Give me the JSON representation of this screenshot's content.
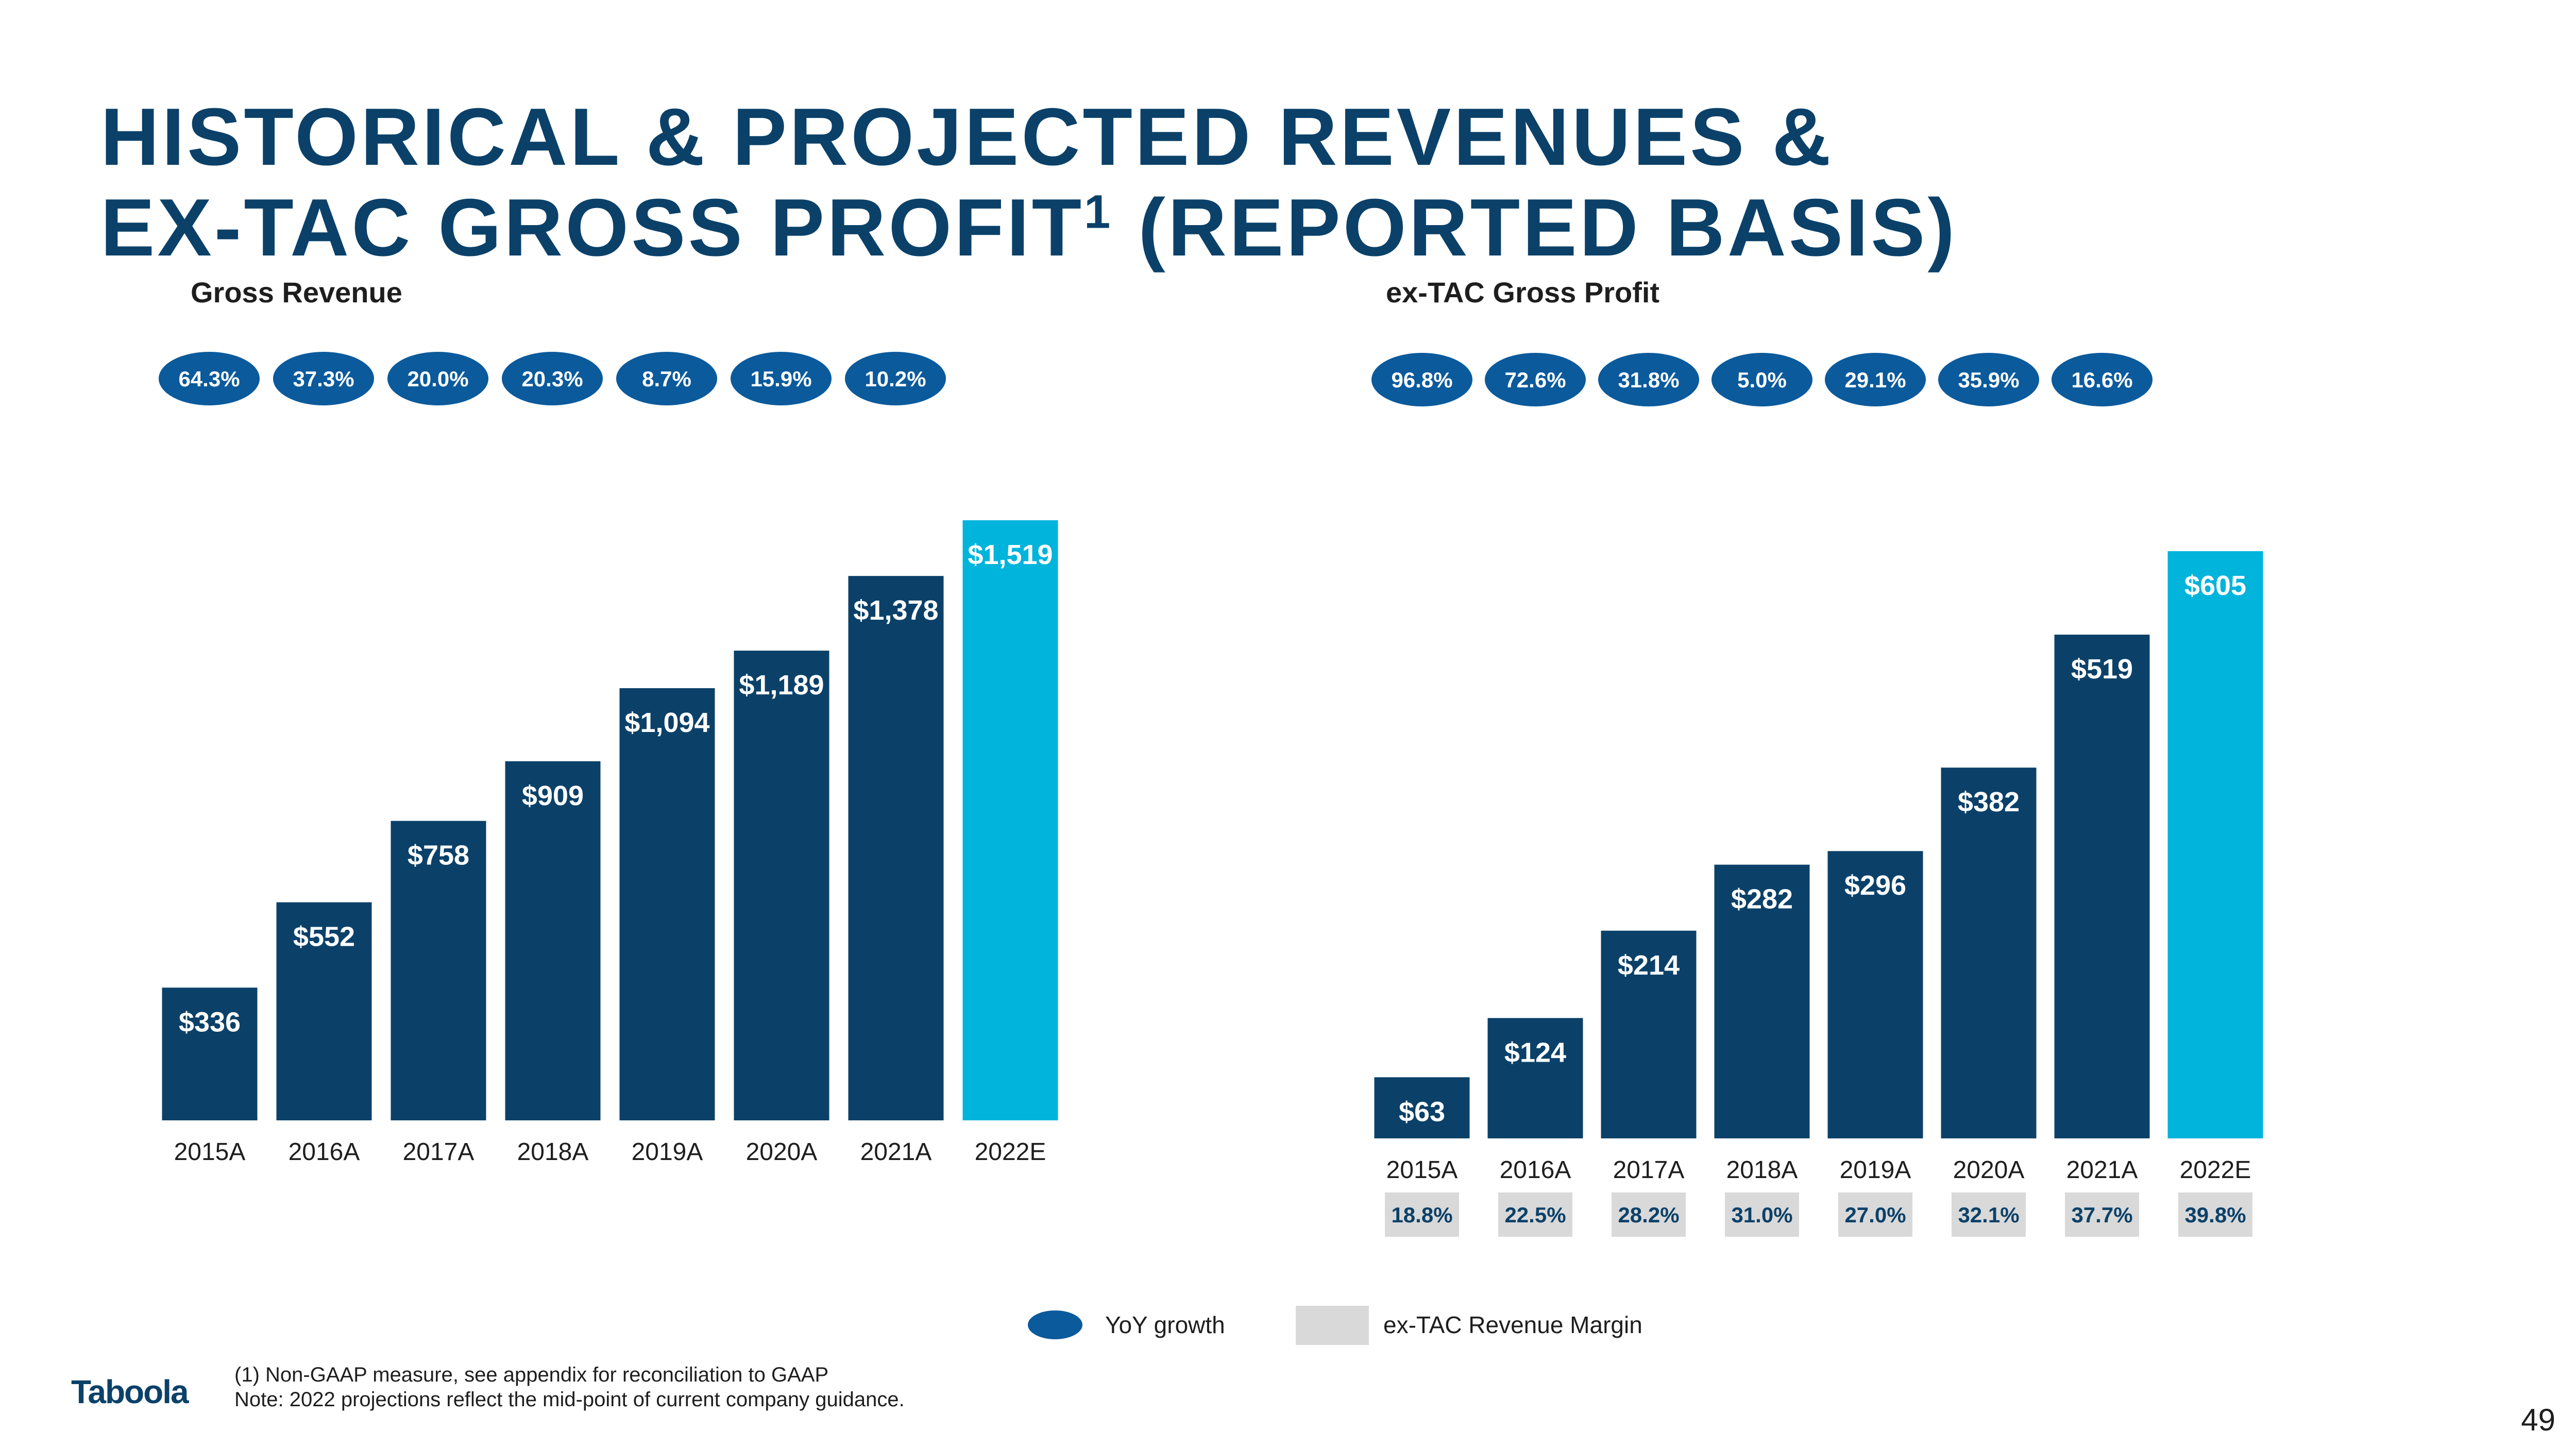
{
  "title": {
    "line1": "HISTORICAL & PROJECTED REVENUES &",
    "line2_main": "EX-TAC GROSS PROFIT",
    "line2_sup": "1",
    "line2_end": " (REPORTED BASIS)"
  },
  "chart_data": [
    {
      "type": "bar",
      "title": "Gross Revenue",
      "categories": [
        "2015A",
        "2016A",
        "2017A",
        "2018A",
        "2019A",
        "2020A",
        "2021A",
        "2022E"
      ],
      "values": [
        336,
        552,
        758,
        909,
        1094,
        1189,
        1378,
        1519
      ],
      "value_labels": [
        "$336",
        "$552",
        "$758",
        "$909",
        "$1,094",
        "$1,189",
        "$1,378",
        "$1,519"
      ],
      "yoy_growth": [
        "64.3%",
        "37.3%",
        "20.0%",
        "20.3%",
        "8.7%",
        "15.9%",
        "10.2%"
      ],
      "bar_colors": [
        "#0b4169",
        "#0b4169",
        "#0b4169",
        "#0b4169",
        "#0b4169",
        "#0b4169",
        "#0b4169",
        "#00b4dc"
      ]
    },
    {
      "type": "bar",
      "title": "ex-TAC Gross Profit",
      "categories": [
        "2015A",
        "2016A",
        "2017A",
        "2018A",
        "2019A",
        "2020A",
        "2021A",
        "2022E"
      ],
      "values": [
        63,
        124,
        214,
        282,
        296,
        382,
        519,
        605
      ],
      "value_labels": [
        "$63",
        "$124",
        "$214",
        "$282",
        "$296",
        "$382",
        "$519",
        "$605"
      ],
      "yoy_growth": [
        "96.8%",
        "72.6%",
        "31.8%",
        "5.0%",
        "29.1%",
        "35.9%",
        "16.6%"
      ],
      "ex_tac_revenue_margin": [
        "18.8%",
        "22.5%",
        "28.2%",
        "31.0%",
        "27.0%",
        "32.1%",
        "37.7%",
        "39.8%"
      ],
      "bar_colors": [
        "#0b4169",
        "#0b4169",
        "#0b4169",
        "#0b4169",
        "#0b4169",
        "#0b4169",
        "#0b4169",
        "#00b4dc"
      ]
    }
  ],
  "legend": {
    "yoy_label": "YoY growth",
    "margin_label": "ex-TAC Revenue Margin"
  },
  "footnote": {
    "line1": "(1) Non-GAAP measure, see appendix for reconciliation to GAAP",
    "line2": "Note: 2022 projections reflect the mid-point of current company guidance."
  },
  "logo_text": "Taboola",
  "page_number": "49",
  "colors": {
    "navy": "#0b4169",
    "bubble": "#0b5a9c",
    "highlight": "#00b4dc",
    "margin_box": "#d9d9d9"
  }
}
